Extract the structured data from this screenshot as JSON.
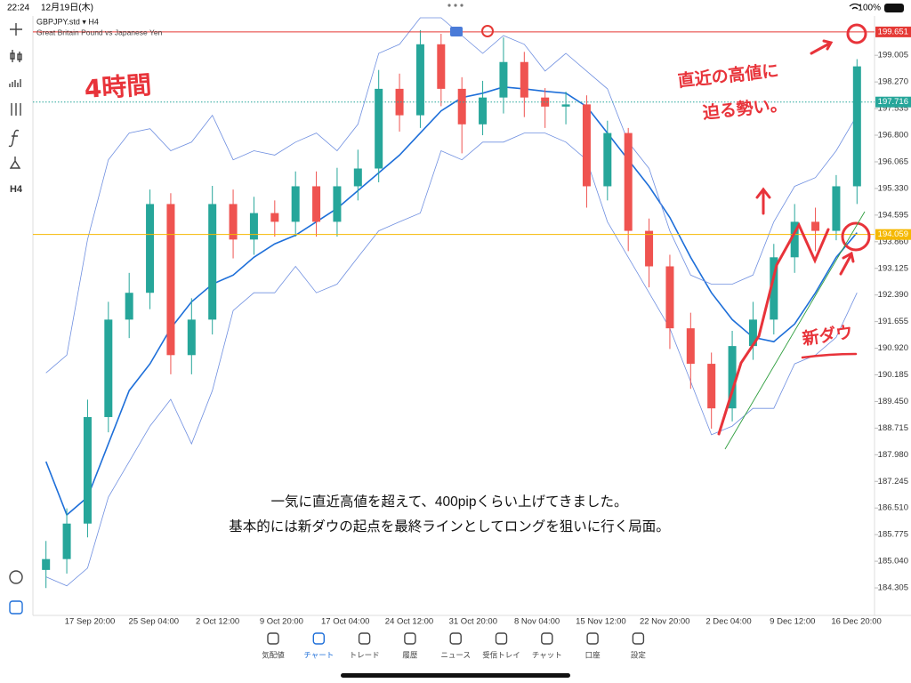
{
  "status_bar": {
    "time": "22:24",
    "date": "12月19日(木)",
    "battery": "100%"
  },
  "symbol": {
    "name": "GBPJPY.std ▾ H4",
    "description": "Great Britain Pound vs Japanese Yen"
  },
  "toolbar": {
    "timeframe": "H4"
  },
  "chart_data": {
    "type": "candlestick",
    "up_color": "#26a69a",
    "down_color": "#ef5350",
    "open": [
      184.8,
      185.1,
      186.08,
      189.02,
      191.71,
      192.45,
      194.9,
      190.73,
      191.71,
      194.9,
      193.92,
      194.65,
      194.41,
      195.39,
      194.41,
      195.39,
      195.88,
      198.08,
      197.35,
      199.31,
      198.08,
      197.1,
      197.84,
      198.82,
      197.84,
      197.59,
      197.65,
      195.39,
      196.86,
      194.16,
      193.18,
      191.47,
      190.49,
      189.26,
      190.98,
      191.71,
      193.43,
      194.41,
      194.16,
      195.39
    ],
    "high": [
      185.6,
      186.5,
      189.5,
      192.2,
      193.0,
      195.3,
      195.2,
      192.3,
      195.4,
      195.3,
      195.1,
      195.0,
      195.8,
      195.8,
      195.9,
      196.4,
      198.6,
      198.5,
      199.7,
      199.6,
      198.4,
      198.3,
      199.5,
      199.1,
      198.1,
      198.0,
      197.9,
      197.2,
      197.0,
      194.5,
      193.5,
      191.9,
      190.8,
      191.4,
      192.2,
      193.8,
      194.9,
      194.8,
      195.7,
      198.9
    ],
    "low": [
      184.3,
      184.7,
      185.7,
      188.6,
      191.2,
      192.0,
      190.2,
      190.2,
      191.3,
      193.4,
      193.5,
      194.0,
      194.0,
      194.0,
      194.0,
      195.0,
      195.5,
      196.9,
      197.0,
      197.6,
      196.3,
      196.8,
      197.4,
      197.3,
      197.0,
      197.1,
      194.8,
      195.0,
      193.6,
      192.6,
      190.9,
      189.8,
      188.7,
      188.9,
      190.6,
      191.3,
      193.0,
      193.6,
      193.9,
      194.9
    ],
    "close": [
      185.1,
      186.08,
      189.02,
      191.71,
      192.45,
      194.9,
      190.73,
      191.71,
      194.9,
      193.92,
      194.65,
      194.41,
      195.39,
      194.41,
      195.39,
      195.88,
      198.08,
      197.35,
      199.31,
      198.08,
      197.1,
      197.84,
      198.82,
      197.84,
      197.59,
      197.65,
      195.39,
      196.86,
      194.16,
      193.18,
      191.47,
      190.49,
      189.26,
      190.98,
      191.71,
      193.43,
      194.41,
      194.16,
      195.39,
      198.7
    ],
    "series": [
      {
        "color": "#1e6fd9",
        "width": 1.6,
        "values": [
          187.79,
          186.32,
          186.81,
          188.28,
          189.75,
          190.49,
          191.47,
          192.2,
          192.69,
          192.94,
          193.43,
          193.8,
          194.04,
          194.41,
          194.78,
          195.27,
          195.76,
          196.25,
          196.86,
          197.47,
          197.84,
          197.96,
          198.13,
          198.08,
          198.01,
          197.96,
          197.59,
          196.86,
          196.12,
          195.39,
          194.53,
          193.43,
          192.45,
          191.71,
          191.22,
          191.1,
          191.59,
          192.45,
          193.43,
          194.11
        ]
      },
      {
        "color": "#6f8fe0",
        "width": 0.8,
        "values": [
          190.24,
          190.73,
          193.92,
          196.12,
          196.86,
          196.98,
          196.37,
          196.61,
          197.35,
          196.12,
          196.37,
          196.25,
          196.61,
          196.86,
          196.37,
          197.1,
          199.06,
          199.31,
          200.04,
          200.04,
          199.55,
          199.06,
          199.55,
          199.31,
          198.57,
          199.06,
          198.57,
          198.08,
          196.61,
          195.88,
          194.16,
          192.94,
          192.69,
          192.69,
          192.94,
          194.41,
          195.39,
          195.63,
          196.37,
          197.35
        ]
      },
      {
        "color": "#6f8fe0",
        "width": 0.8,
        "values": [
          184.61,
          184.36,
          184.85,
          186.81,
          187.79,
          188.77,
          189.51,
          188.28,
          189.75,
          191.96,
          192.45,
          192.45,
          193.18,
          192.45,
          192.69,
          193.43,
          194.16,
          194.41,
          194.65,
          196.37,
          196.12,
          196.61,
          196.61,
          196.86,
          196.86,
          196.61,
          196.12,
          194.41,
          193.43,
          192.45,
          191.47,
          190.0,
          188.53,
          188.77,
          189.26,
          189.26,
          190.49,
          190.73,
          191.22,
          192.45
        ]
      }
    ],
    "ylim": [
      183.545,
      200.09
    ],
    "yticks": [
      199.005,
      {
        "value": 198.27,
        "label": "198.270"
      },
      197.535,
      {
        "value": 196.8,
        "label": "196.800"
      },
      196.065,
      {
        "value": 195.33,
        "label": "195.330"
      },
      194.595,
      {
        "value": 193.86,
        "label": "193.860"
      },
      193.125,
      {
        "value": 192.39,
        "label": "192.390"
      },
      191.655,
      {
        "value": 190.92,
        "label": "190.920"
      },
      190.185,
      {
        "value": 189.45,
        "label": "189.450"
      },
      188.715,
      {
        "value": 187.98,
        "label": "187.980"
      },
      187.245,
      {
        "value": 186.51,
        "label": "186.510"
      },
      185.775,
      {
        "value": 185.04,
        "label": "185.040"
      },
      184.305
    ],
    "price_lines": [
      {
        "value": 199.651,
        "color": "#e53935",
        "style": "solid"
      },
      {
        "value": 197.716,
        "color": "#26a69a",
        "style": "dotted"
      },
      {
        "value": 194.059,
        "color": "#f5b800",
        "style": "solid"
      }
    ],
    "xtick_labels": [
      "17 Sep 20:00",
      "25 Sep 04:00",
      "2 Oct 12:00",
      "9 Oct 20:00",
      "17 Oct 04:00",
      "24 Oct 12:00",
      "31 Oct 20:00",
      "8 Nov 04:00",
      "15 Nov 12:00",
      "22 Nov 20:00",
      "2 Dec 04:00",
      "9 Dec 12:00",
      "16 Dec 20:00"
    ]
  },
  "annotations": {
    "timeframe_note": "4時間",
    "high_note_1": "直近の高値に",
    "high_note_2": "迫る勢い。",
    "dow_note": "新ダウ"
  },
  "caption": [
    "一気に直近高値を超えて、400pipくらい上げてきました。",
    "基本的には新ダウの起点を最終ラインとしてロングを狙いに行く局面。"
  ],
  "nav": {
    "items": [
      "気配値",
      "チャート",
      "トレード",
      "履歴",
      "ニュース",
      "受信トレイ",
      "チャット",
      "口座",
      "設定"
    ],
    "active": 1
  }
}
